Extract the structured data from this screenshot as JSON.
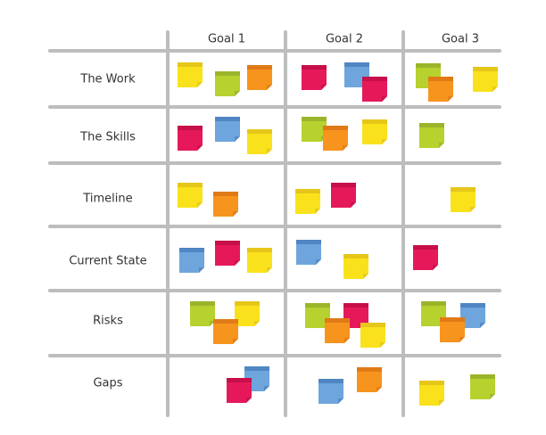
{
  "columns": [
    "Goal 1",
    "Goal 2",
    "Goal 3"
  ],
  "rows": [
    "The Work",
    "The Skills",
    "Timeline",
    "Current State",
    "Risks",
    "Gaps"
  ]
}
